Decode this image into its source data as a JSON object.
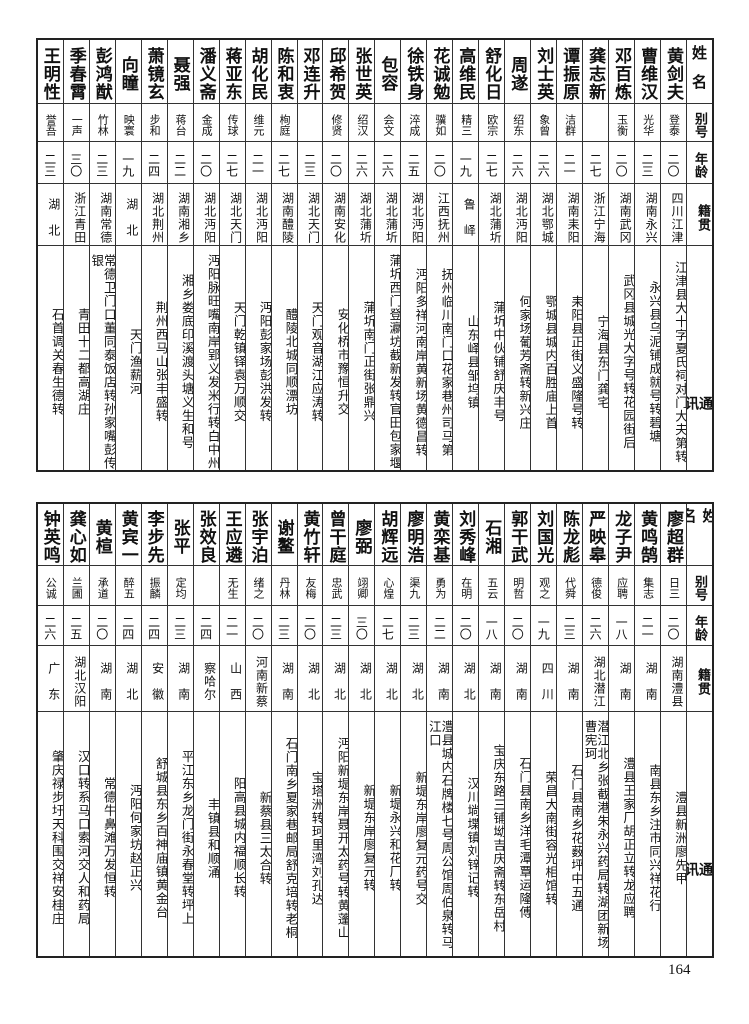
{
  "header": {
    "name": "姓名",
    "alias": "别号",
    "age": "年龄",
    "native": "籍贯",
    "address": "通讯处"
  },
  "tables": [
    {
      "people": [
        {
          "name": "黄剑夫",
          "alias": "登泰",
          "age": "二〇",
          "native": "四川江津",
          "address": "江津县大十字夏氏祠对门大夫第转"
        },
        {
          "name": "曹维汉",
          "alias": "光华",
          "age": "二三",
          "native": "湖南永兴",
          "address": "永兴县乌泥铺成就号转碧塘"
        },
        {
          "name": "邓百炼",
          "alias": "玉衡",
          "age": "二〇",
          "native": "湖南武冈",
          "address": "武冈县城光大字号转花园街后"
        },
        {
          "name": "龚志新",
          "alias": "",
          "age": "二七",
          "native": "浙江宁海",
          "address": "宁海县东门龚宅"
        },
        {
          "name": "谭振原",
          "alias": "洁群",
          "age": "二一",
          "native": "湖南耒阳",
          "address": "耒阳县正街义盛隆号转"
        },
        {
          "name": "刘士英",
          "alias": "象曾",
          "age": "二六",
          "native": "湖北鄂城",
          "address": "鄂城县城内百胜庙上首"
        },
        {
          "name": "周遂",
          "alias": "绍东",
          "age": "二六",
          "native": "湖北沔阳",
          "address": "何家场葡芳斋转新兴庄"
        },
        {
          "name": "舒化日",
          "alias": "欧宗",
          "age": "二七",
          "native": "湖北蒲圻",
          "address": "蒲圻中伙铺舒庆丰号"
        },
        {
          "name": "高维民",
          "alias": "精三",
          "age": "一九",
          "native": "鲁　峄",
          "address": "山东峄县邹坞镇"
        },
        {
          "name": "花诚勉",
          "alias": "骥如",
          "age": "二〇",
          "native": "江西抚州",
          "address": "抚州临川南门口花家巷州司马第"
        },
        {
          "name": "徐铁身",
          "alias": "淬成",
          "age": "二五",
          "native": "湖北沔阳",
          "address": "沔阳多祥河南岸黄新场黄德昌转"
        },
        {
          "name": "包容",
          "alias": "会文",
          "age": "二六",
          "native": "湖北蒲圻",
          "address": "蒲圻西门登瀛坊截新发转官田包家堰"
        },
        {
          "name": "张世英",
          "alias": "绍汉",
          "age": "二六",
          "native": "湖北蒲圻",
          "address": "蒲圻南门正街张鼎兴"
        },
        {
          "name": "邱希贺",
          "alias": "修贤",
          "age": "二〇",
          "native": "湖南安化",
          "address": "安化桥市豫恒升交"
        },
        {
          "name": "邓连升",
          "alias": "",
          "age": "二三",
          "native": "湖北天门",
          "address": "天门观音湖江应涛转"
        },
        {
          "name": "陈和衷",
          "alias": "栒庭",
          "age": "二七",
          "native": "湖南醴陵",
          "address": "醴陵北城同顺漂坊"
        },
        {
          "name": "胡化民",
          "alias": "维元",
          "age": "二一",
          "native": "湖北沔阳",
          "address": "沔阳彭家场彭洪发转"
        },
        {
          "name": "蒋亚东",
          "alias": "传球",
          "age": "二七",
          "native": "湖北天门",
          "address": "天门乾镇铎袁万顺交"
        },
        {
          "name": "潘义斋",
          "alias": "金成",
          "age": "二〇",
          "native": "湖北沔阳",
          "address": "沔阳脉旺嘴南岸郢义发米行转白中州"
        },
        {
          "name": "聂强",
          "alias": "蒋台",
          "age": "二二",
          "native": "湖南湘乡",
          "address": "湘乡娄底印溪渡头塘义生和号"
        },
        {
          "name": "萧镜玄",
          "alias": "步和",
          "age": "二四",
          "native": "湖北荆州",
          "address": "荆州西马山张丰盛转"
        },
        {
          "name": "向瞳",
          "alias": "映寰",
          "age": "一九",
          "native": "湖　北",
          "address": "天门渔薪河"
        },
        {
          "name": "彭鸿猷",
          "alias": "竹林",
          "age": "二三",
          "native": "湖南常德",
          "address": "常德卫门口董同泰饭店转孙家嘴彭传银"
        },
        {
          "name": "季春霄",
          "alias": "一声",
          "age": "三〇",
          "native": "浙江青田",
          "address": "青田十二都高湖庄"
        },
        {
          "name": "王明性",
          "alias": "誉吾",
          "age": "二三",
          "native": "湖　北",
          "address": "石首调关春生德转"
        }
      ]
    },
    {
      "people": [
        {
          "name": "廖超群",
          "alias": "日三",
          "age": "二〇",
          "native": "湖南澧县",
          "address": "澧县新洲廖先甲"
        },
        {
          "name": "黄鸣鹄",
          "alias": "集志",
          "age": "二一",
          "native": "湖　南",
          "address": "南县东乡注市同兴祥花行"
        },
        {
          "name": "龙子尹",
          "alias": "应聘",
          "age": "一八",
          "native": "湖　南",
          "address": "澧县王家厂胡正立转龙应聘"
        },
        {
          "name": "严映皋",
          "alias": "德俊",
          "age": "二六",
          "native": "湖北潜江",
          "address": "潜江北乡张截港朱永兴药局转湖团新场曹宪珂"
        },
        {
          "name": "陈龙彪",
          "alias": "代舜",
          "age": "二三",
          "native": "湖　南",
          "address": "石门县南乡花薮坪中五通"
        },
        {
          "name": "刘国光",
          "alias": "观之",
          "age": "一九",
          "native": "四　川",
          "address": "荣昌大南街容光相馆转"
        },
        {
          "name": "郭干武",
          "alias": "明哲",
          "age": "二〇",
          "native": "湖　南",
          "address": "石门县南乡洋毛潭覃运隆傅"
        },
        {
          "name": "石湘",
          "alias": "五云",
          "age": "一八",
          "native": "湖　南",
          "address": "宝庆东路三铺坳吉庆斋转东岳村"
        },
        {
          "name": "刘秀峰",
          "alias": "在明",
          "age": "二〇",
          "native": "湖　北",
          "address": "汉川埫堞镇刘锌记转"
        },
        {
          "name": "黄栾基",
          "alias": "勇为",
          "age": "二二",
          "native": "湖　南",
          "address": "澧县城内石牌楼七号周公馆周伯泉转马江口"
        },
        {
          "name": "廖明浩",
          "alias": "渠九",
          "age": "二三",
          "native": "湖　北",
          "address": "新堤东岸廖复元药号交"
        },
        {
          "name": "胡辉远",
          "alias": "心煌",
          "age": "二七",
          "native": "湖　北",
          "address": "新堤永兴和花厂转"
        },
        {
          "name": "廖弼",
          "alias": "翊卿",
          "age": "三〇",
          "native": "湖　北",
          "address": "新堤东岸廖复元转"
        },
        {
          "name": "曾干庭",
          "alias": "忠武",
          "age": "二三",
          "native": "湖　北",
          "address": "沔阳新堤东岸聂开太药号转黄蓬山"
        },
        {
          "name": "黄竹轩",
          "alias": "友梅",
          "age": "二〇",
          "native": "湖　北",
          "address": "宝塔洲转珂里湾刘孔达"
        },
        {
          "name": "谢鳌",
          "alias": "丹林",
          "age": "二三",
          "native": "湖　南",
          "address": "石门南乡夏家巷邮局舒克培转老桐"
        },
        {
          "name": "张宇泊",
          "alias": "绪之",
          "age": "二〇",
          "native": "河南新蔡",
          "address": "新蔡县三太合转"
        },
        {
          "name": "王应遴",
          "alias": "无生",
          "age": "二一",
          "native": "山　西",
          "address": "阳高县城内福顺长转"
        },
        {
          "name": "张效良",
          "alias": "",
          "age": "二四",
          "native": "察哈尔",
          "address": "丰镇县和顺涌"
        },
        {
          "name": "张平",
          "alias": "定均",
          "age": "二三",
          "native": "湖　南",
          "address": "平江东乡龙门街永春堂转坪上"
        },
        {
          "name": "李步先",
          "alias": "振麟",
          "age": "二四",
          "native": "安　徽",
          "address": "舒城县东乡百神庙镇黄金台"
        },
        {
          "name": "黄宾一",
          "alias": "醉五",
          "age": "二四",
          "native": "湖　北",
          "address": "沔阳何家坊赵正兴"
        },
        {
          "name": "黄楦",
          "alias": "承道",
          "age": "二〇",
          "native": "湖　南",
          "address": "常德牛鼻滩万发恒转"
        },
        {
          "name": "龚心如",
          "alias": "兰圃",
          "age": "二五",
          "native": "湖北汉阳",
          "address": "汉口转系马口索河交人和药局"
        },
        {
          "name": "钟英鸣",
          "alias": "公诚",
          "age": "二六",
          "native": "广　东",
          "address": "肇庆禄步圩天科围交祥安桂庄"
        }
      ]
    }
  ],
  "page_number": "164"
}
